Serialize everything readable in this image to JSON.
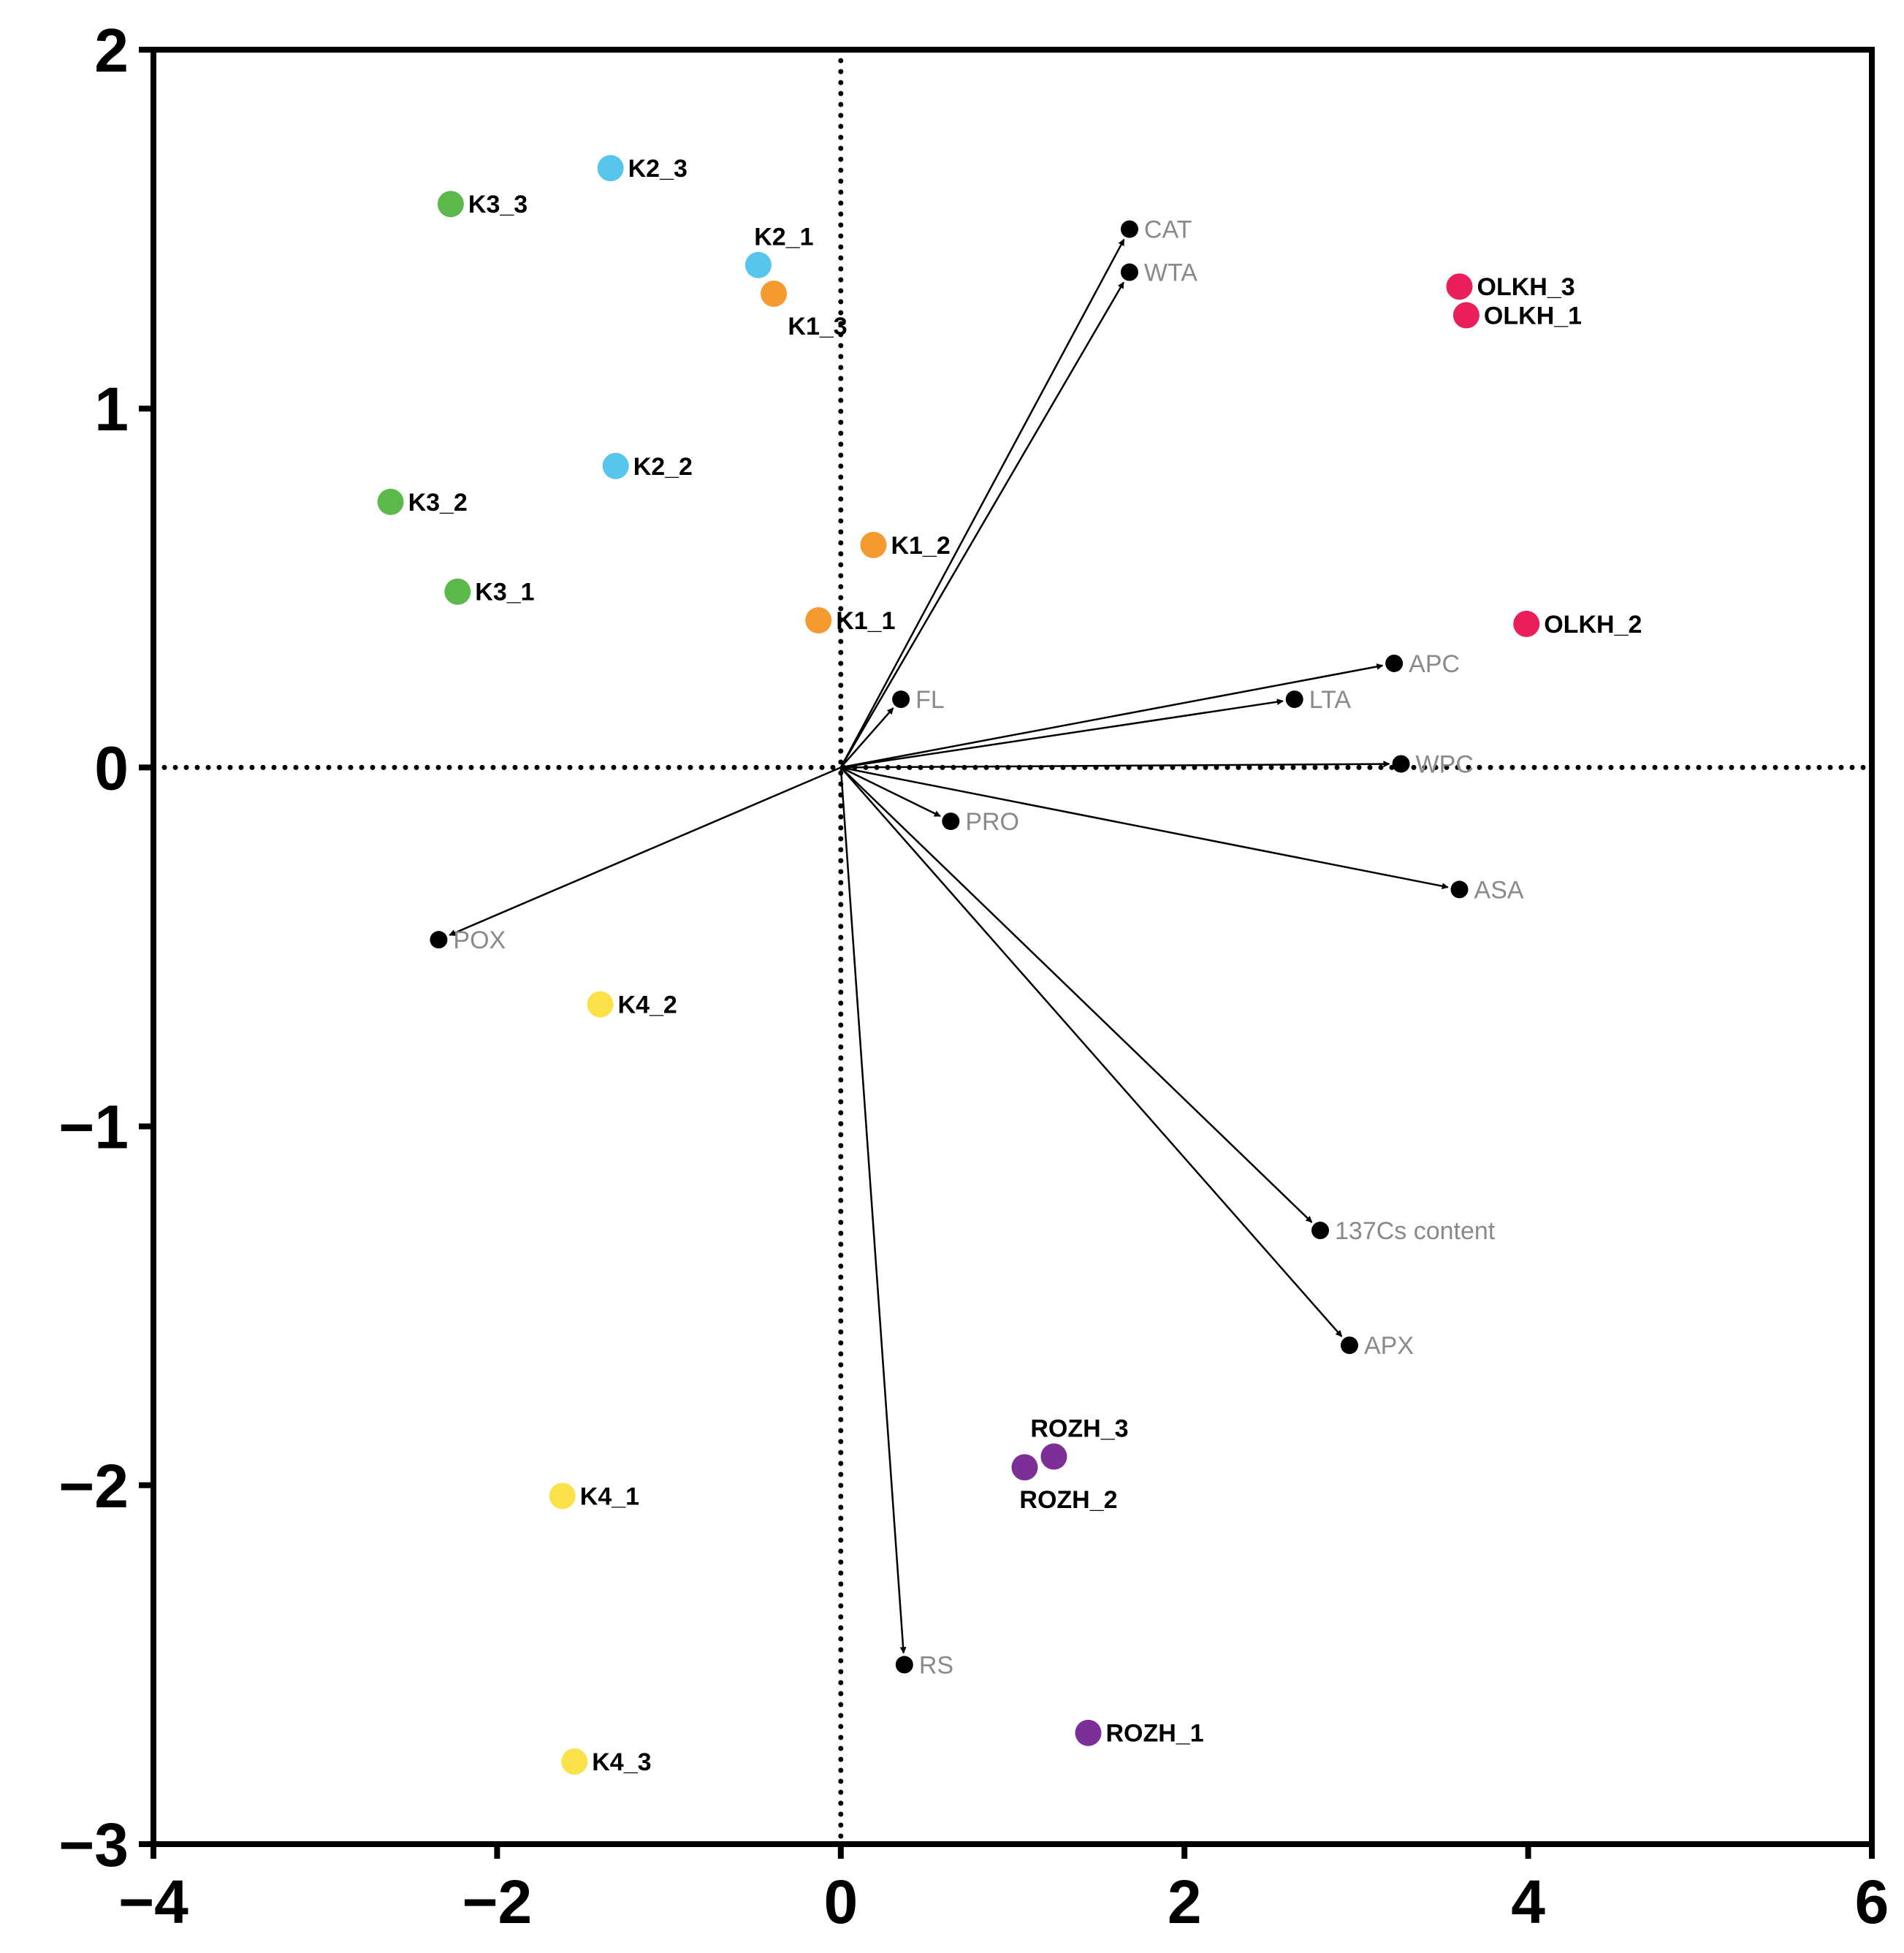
{
  "chart_data": {
    "type": "scatter",
    "title": "",
    "xlabel": "",
    "ylabel": "",
    "xlim": [
      -4,
      6
    ],
    "ylim": [
      -3,
      2
    ],
    "x_ticks": [
      -4,
      -2,
      0,
      2,
      4,
      6
    ],
    "y_ticks": [
      -3,
      -2,
      -1,
      0,
      1,
      2
    ],
    "x_tick_labels": [
      "−4",
      "−2",
      "0",
      "2",
      "4",
      "6"
    ],
    "y_tick_labels": [
      "−3",
      "−2",
      "−1",
      "0",
      "1",
      "2"
    ],
    "reference_lines": {
      "x": 0,
      "y": 0,
      "style": "dotted"
    },
    "colors": {
      "orange": "#f59a2f",
      "blue": "#58c5ec",
      "green": "#5bb84b",
      "yellow": "#fbe24b",
      "red": "#ea1e5b",
      "purple": "#7d2f98",
      "vector": "#000000",
      "vector_label": "#8a8a8a"
    },
    "scores": [
      {
        "label": "K1_1",
        "x": -0.13,
        "y": 0.41,
        "color": "orange",
        "label_pos": "right"
      },
      {
        "label": "K1_2",
        "x": 0.19,
        "y": 0.62,
        "color": "orange",
        "label_pos": "right"
      },
      {
        "label": "K1_3",
        "x": -0.39,
        "y": 1.32,
        "color": "orange",
        "label_pos": "below"
      },
      {
        "label": "K2_1",
        "x": -0.48,
        "y": 1.4,
        "color": "blue",
        "label_pos": "above"
      },
      {
        "label": "K2_2",
        "x": -1.31,
        "y": 0.84,
        "color": "blue",
        "label_pos": "right"
      },
      {
        "label": "K2_3",
        "x": -1.34,
        "y": 1.67,
        "color": "blue",
        "label_pos": "right"
      },
      {
        "label": "K3_1",
        "x": -2.23,
        "y": 0.49,
        "color": "green",
        "label_pos": "right"
      },
      {
        "label": "K3_2",
        "x": -2.62,
        "y": 0.74,
        "color": "green",
        "label_pos": "right"
      },
      {
        "label": "K3_3",
        "x": -2.27,
        "y": 1.57,
        "color": "green",
        "label_pos": "right"
      },
      {
        "label": "K4_1",
        "x": -1.62,
        "y": -2.03,
        "color": "yellow",
        "label_pos": "right"
      },
      {
        "label": "K4_2",
        "x": -1.4,
        "y": -0.66,
        "color": "yellow",
        "label_pos": "right"
      },
      {
        "label": "K4_3",
        "x": -1.55,
        "y": -2.77,
        "color": "yellow",
        "label_pos": "right"
      },
      {
        "label": "OLKH_1",
        "x": 3.64,
        "y": 1.26,
        "color": "red",
        "label_pos": "right"
      },
      {
        "label": "OLKH_2",
        "x": 3.99,
        "y": 0.4,
        "color": "red",
        "label_pos": "right"
      },
      {
        "label": "OLKH_3",
        "x": 3.6,
        "y": 1.34,
        "color": "red",
        "label_pos": "right"
      },
      {
        "label": "ROZH_1",
        "x": 1.44,
        "y": -2.69,
        "color": "purple",
        "label_pos": "right"
      },
      {
        "label": "ROZH_2",
        "x": 1.07,
        "y": -1.95,
        "color": "purple",
        "label_pos": "below"
      },
      {
        "label": "ROZH_3",
        "x": 1.24,
        "y": -1.92,
        "color": "purple",
        "label_pos": "above"
      }
    ],
    "loadings": [
      {
        "label": "CAT",
        "x": 1.68,
        "y": 1.5
      },
      {
        "label": "WTA",
        "x": 1.68,
        "y": 1.38
      },
      {
        "label": "APC",
        "x": 3.22,
        "y": 0.29
      },
      {
        "label": "LTA",
        "x": 2.64,
        "y": 0.19
      },
      {
        "label": "WPC",
        "x": 3.26,
        "y": 0.01
      },
      {
        "label": "FL",
        "x": 0.35,
        "y": 0.19
      },
      {
        "label": "PRO",
        "x": 0.64,
        "y": -0.15
      },
      {
        "label": "ASA",
        "x": 3.6,
        "y": -0.34
      },
      {
        "label": "POX",
        "x": -2.34,
        "y": -0.48
      },
      {
        "label": "137Cs content",
        "x": 2.79,
        "y": -1.29
      },
      {
        "label": "APX",
        "x": 2.96,
        "y": -1.61
      },
      {
        "label": "RS",
        "x": 0.37,
        "y": -2.5
      }
    ]
  }
}
